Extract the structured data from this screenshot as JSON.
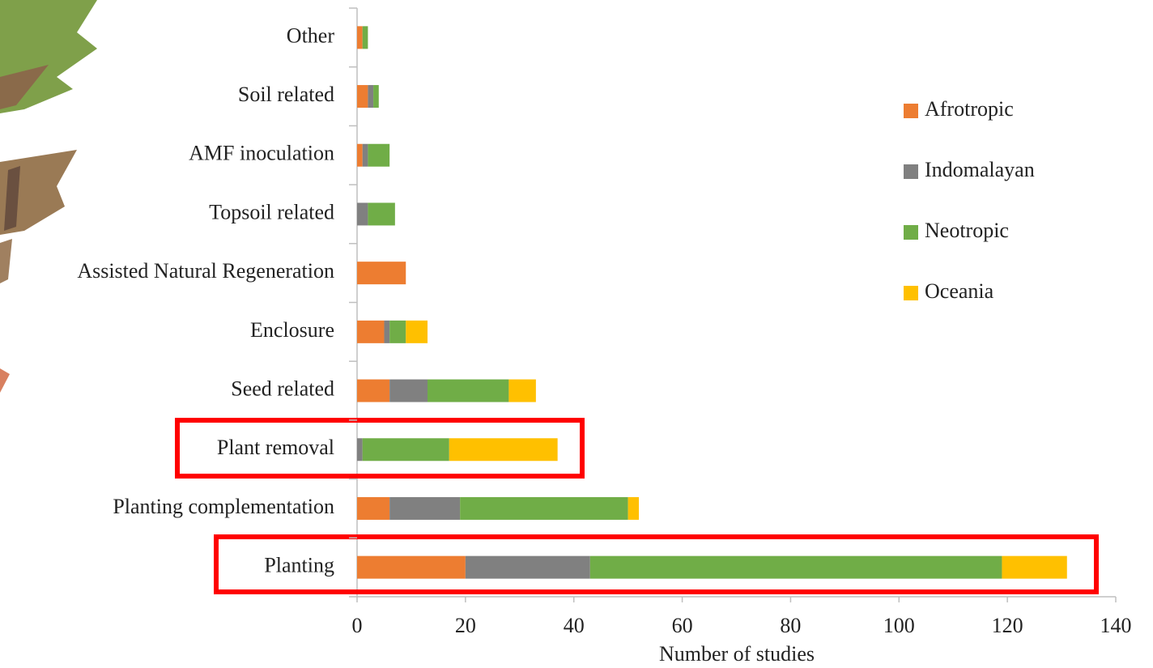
{
  "chart_data": {
    "type": "stacked-bar-horizontal",
    "x_label": "Number of studies",
    "categories": [
      "Other",
      "Soil related",
      "AMF inoculation",
      "Topsoil related",
      "Assisted Natural Regeneration",
      "Enclosure",
      "Seed related",
      "Plant removal",
      "Planting complementation",
      "Planting"
    ],
    "series": [
      {
        "name": "Afrotropic",
        "color": "#ED7D31",
        "values": [
          1,
          2,
          1,
          0,
          9,
          5,
          6,
          0,
          6,
          20
        ]
      },
      {
        "name": "Indomalayan",
        "color": "#808080",
        "values": [
          0,
          1,
          1,
          2,
          0,
          1,
          7,
          1,
          13,
          23
        ]
      },
      {
        "name": "Neotropic",
        "color": "#70AD47",
        "values": [
          1,
          1,
          4,
          5,
          0,
          3,
          15,
          16,
          31,
          76
        ]
      },
      {
        "name": "Oceania",
        "color": "#FFC000",
        "values": [
          0,
          0,
          0,
          0,
          0,
          4,
          5,
          20,
          2,
          12
        ]
      }
    ],
    "xlim": [
      0,
      140
    ],
    "xticks": [
      0,
      20,
      40,
      60,
      80,
      100,
      120,
      140
    ]
  }
}
